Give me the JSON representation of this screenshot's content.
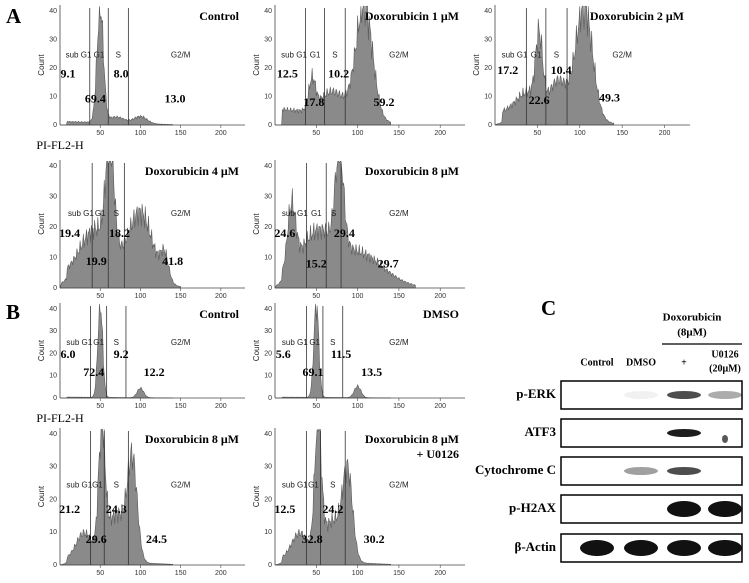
{
  "axis": {
    "y_label": "Count",
    "x_label": "PI-FL2-H",
    "x_ticks": [
      "50",
      "100",
      "150",
      "200"
    ],
    "y_ticks": [
      "0",
      "10",
      "20",
      "30",
      "40"
    ],
    "regions": [
      "sub G1",
      "G1",
      "S",
      "G2/M"
    ]
  },
  "panels": [
    {
      "label": "A",
      "histograms": [
        {
          "title": "Control",
          "values": [
            "9.1",
            "69.4",
            "8.0",
            "13.0"
          ]
        },
        {
          "title": "Doxorubicin 1 μM",
          "values": [
            "12.5",
            "17.8",
            "10.2",
            "59.2"
          ]
        },
        {
          "title": "Doxorubicin 2 μM",
          "values": [
            "17.2",
            "22.6",
            "10.4",
            "49.3"
          ]
        },
        {
          "title": "Doxorubicin 4 μM",
          "values": [
            "19.4",
            "19.9",
            "18.2",
            "41.8"
          ]
        },
        {
          "title": "Doxorubicin 8 μM",
          "values": [
            "24.6",
            "15.2",
            "29.4",
            "29.7"
          ]
        }
      ]
    },
    {
      "label": "B",
      "histograms": [
        {
          "title": "Control",
          "values": [
            "6.0",
            "72.4",
            "9.2",
            "12.2"
          ]
        },
        {
          "title": "DMSO",
          "values": [
            "5.6",
            "69.1",
            "11.5",
            "13.5"
          ]
        },
        {
          "title": "Doxorubicin 8 μM",
          "values": [
            "21.2",
            "29.6",
            "24.3",
            "24.5"
          ]
        },
        {
          "title": "Doxorubicin 8 μM",
          "subtitle": "+ U0126",
          "values": [
            "12.5",
            "32.8",
            "24.2",
            "30.2"
          ]
        }
      ]
    },
    {
      "label": "C",
      "treatment": [
        "Doxorubicin",
        "(8μM)"
      ],
      "columns": [
        "Control",
        "DMSO",
        "+"
      ],
      "inhibitor": [
        "U0126",
        "(20μM)"
      ],
      "rows": [
        "p-ERK",
        "ATF3",
        "Cytochrome C",
        "p-H2AX",
        "β-Actin"
      ]
    }
  ]
}
